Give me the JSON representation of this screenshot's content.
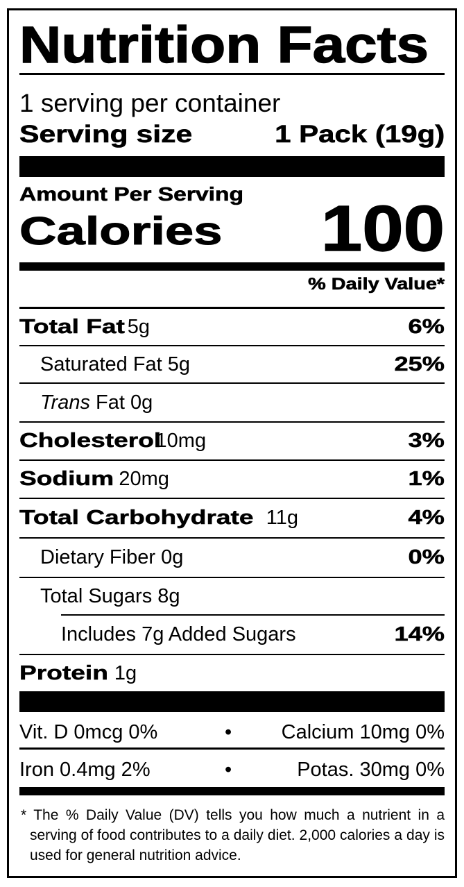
{
  "title": "Nutrition Facts",
  "servings_per_container": "1 serving per container",
  "serving_size_label": "Serving size",
  "serving_size_value": "1 Pack (19g)",
  "amount_per_serving": "Amount Per Serving",
  "calories_label": "Calories",
  "calories_value": "100",
  "daily_value_header": "% Daily Value*",
  "nutrients": [
    {
      "name": "Total Fat",
      "amount": "5g",
      "dv": "6%"
    },
    {
      "name": "Saturated Fat",
      "amount": "5g",
      "dv": "25%"
    },
    {
      "name_italic": "Trans",
      "name": "Fat",
      "amount": "0g",
      "dv": ""
    },
    {
      "name": "Cholesterol",
      "amount": "10mg",
      "dv": "3%"
    },
    {
      "name": "Sodium",
      "amount": "20mg",
      "dv": "1%"
    },
    {
      "name": "Total Carbohydrate",
      "amount": "11g",
      "dv": "4%"
    },
    {
      "name": "Dietary Fiber",
      "amount": "0g",
      "dv": "0%"
    },
    {
      "name": "Total Sugars",
      "amount": "8g",
      "dv": ""
    },
    {
      "name": "Includes 7g Added Sugars",
      "amount": "",
      "dv": "14%"
    },
    {
      "name": "Protein",
      "amount": "1g",
      "dv": ""
    }
  ],
  "vitamins": [
    {
      "left": "Vit. D 0mcg 0%",
      "separator": "•",
      "right": "Calcium 10mg 0%"
    },
    {
      "left": "Iron 0.4mg 2%",
      "separator": "•",
      "right": "Potas. 30mg 0%"
    }
  ],
  "footnote": "* The % Daily Value (DV) tells you how much a nutrient in a serving of food contributes to a daily diet. 2,000 calories a day is used for general nutrition advice."
}
